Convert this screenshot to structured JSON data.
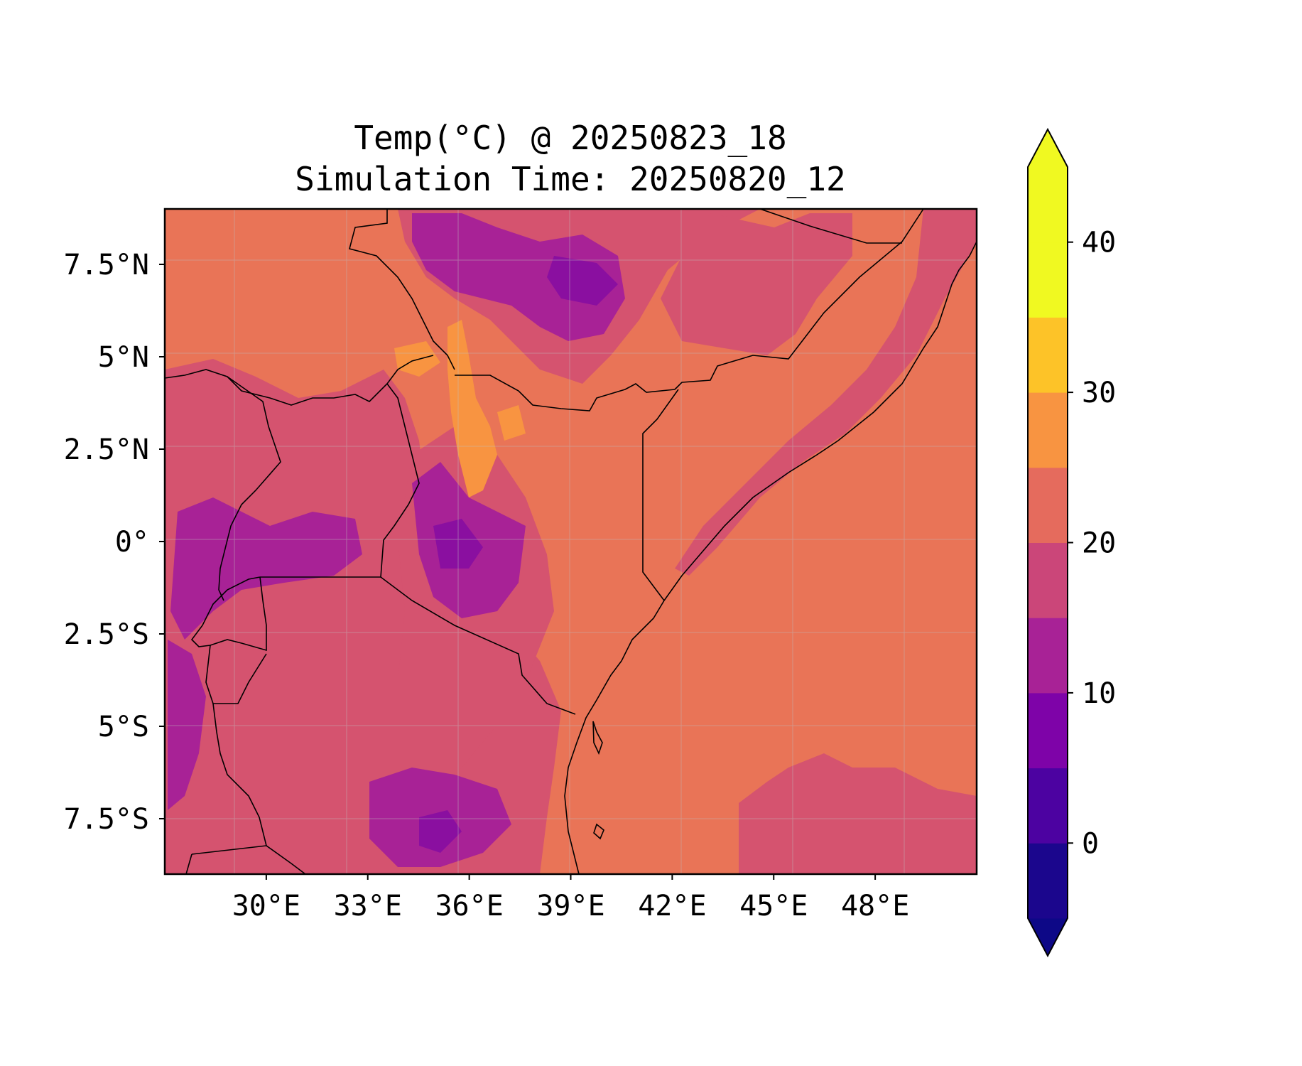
{
  "title": {
    "line1": "Temp(°C) @ 20250823_18",
    "line2": "Simulation Time: 20250820_12"
  },
  "map": {
    "region": "East Africa",
    "projection": "PlateCarree",
    "lon_range": [
      27,
      51
    ],
    "lat_range": [
      -9,
      9
    ],
    "x_ticks": [
      {
        "value": 30,
        "label": "30°E"
      },
      {
        "value": 33,
        "label": "33°E"
      },
      {
        "value": 36,
        "label": "36°E"
      },
      {
        "value": 39,
        "label": "39°E"
      },
      {
        "value": 42,
        "label": "42°E"
      },
      {
        "value": 45,
        "label": "45°E"
      },
      {
        "value": 48,
        "label": "48°E"
      }
    ],
    "y_ticks": [
      {
        "value": 7.5,
        "label": "7.5°N"
      },
      {
        "value": 5,
        "label": "5°N"
      },
      {
        "value": 2.5,
        "label": "2.5°N"
      },
      {
        "value": 0,
        "label": "0°"
      },
      {
        "value": -2.5,
        "label": "2.5°S"
      },
      {
        "value": -5,
        "label": "5°S"
      },
      {
        "value": -7.5,
        "label": "7.5°S"
      }
    ],
    "gridlines": true,
    "coastline_color": "#000000",
    "border_color": "#000000"
  },
  "colorbar": {
    "colormap": "plasma",
    "extend": "both",
    "levels": [
      -5,
      0,
      5,
      10,
      15,
      20,
      25,
      30,
      35,
      40,
      45
    ],
    "colors": [
      "#1b068d",
      "#4c02a1",
      "#7e03a8",
      "#a82296",
      "#cb4679",
      "#e56b5d",
      "#f89441",
      "#fdc328",
      "#f0f921"
    ],
    "under_color": "#0d0887",
    "over_color": "#f0f921",
    "ticks": [
      {
        "value": 0,
        "label": "0"
      },
      {
        "value": 10,
        "label": "10"
      },
      {
        "value": 20,
        "label": "20"
      },
      {
        "value": 30,
        "label": "30"
      },
      {
        "value": 40,
        "label": "40"
      }
    ]
  },
  "colors": {
    "band_15_20": "#a82296",
    "band_20_25": "#d5536f",
    "band_25_30": "#e97457",
    "band_30_35": "#f89441",
    "band_10_15": "#8a0fa0",
    "band_5_10": "#7e03a8"
  }
}
